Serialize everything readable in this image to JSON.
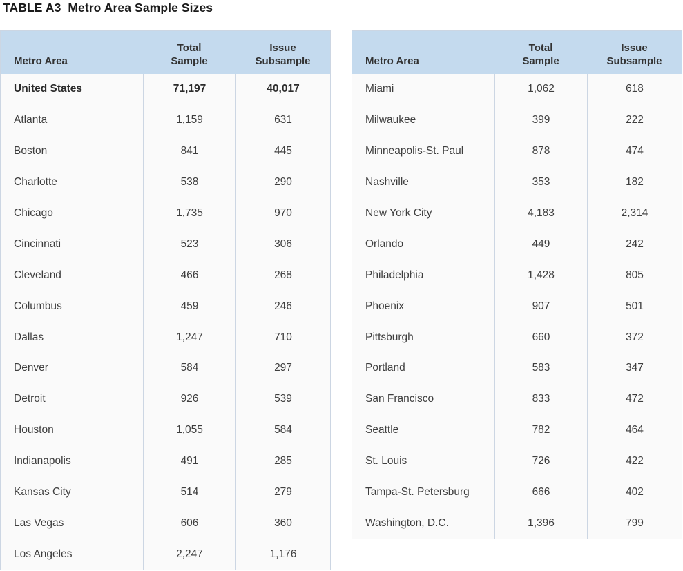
{
  "title": "TABLE A3  Metro Area Sample Sizes",
  "columns": [
    "Metro Area",
    "Total\nSample",
    "Issue\nSubsample"
  ],
  "colors": {
    "header_bg": "#c4daee",
    "body_bg": "#fafafa",
    "grid_line": "#ccd6e3",
    "title_color": "#1a1a1a",
    "header_text": "#333333",
    "body_text": "#3e3e3e",
    "bold_text": "#2b2b2b"
  },
  "tables": {
    "left": {
      "rows": [
        {
          "metro": "United States",
          "total": "71,197",
          "issue": "40,017",
          "bold": true
        },
        {
          "metro": "Atlanta",
          "total": "1,159",
          "issue": "631"
        },
        {
          "metro": "Boston",
          "total": "841",
          "issue": "445"
        },
        {
          "metro": "Charlotte",
          "total": "538",
          "issue": "290"
        },
        {
          "metro": "Chicago",
          "total": "1,735",
          "issue": "970"
        },
        {
          "metro": "Cincinnati",
          "total": "523",
          "issue": "306"
        },
        {
          "metro": "Cleveland",
          "total": "466",
          "issue": "268"
        },
        {
          "metro": "Columbus",
          "total": "459",
          "issue": "246"
        },
        {
          "metro": "Dallas",
          "total": "1,247",
          "issue": "710"
        },
        {
          "metro": "Denver",
          "total": "584",
          "issue": "297"
        },
        {
          "metro": "Detroit",
          "total": "926",
          "issue": "539"
        },
        {
          "metro": "Houston",
          "total": "1,055",
          "issue": "584"
        },
        {
          "metro": "Indianapolis",
          "total": "491",
          "issue": "285"
        },
        {
          "metro": "Kansas City",
          "total": "514",
          "issue": "279"
        },
        {
          "metro": "Las Vegas",
          "total": "606",
          "issue": "360"
        },
        {
          "metro": "Los Angeles",
          "total": "2,247",
          "issue": "1,176"
        }
      ]
    },
    "right": {
      "rows": [
        {
          "metro": "Miami",
          "total": "1,062",
          "issue": "618"
        },
        {
          "metro": "Milwaukee",
          "total": "399",
          "issue": "222"
        },
        {
          "metro": "Minneapolis-St. Paul",
          "total": "878",
          "issue": "474"
        },
        {
          "metro": "Nashville",
          "total": "353",
          "issue": "182"
        },
        {
          "metro": "New York City",
          "total": "4,183",
          "issue": "2,314"
        },
        {
          "metro": "Orlando",
          "total": "449",
          "issue": "242"
        },
        {
          "metro": "Philadelphia",
          "total": "1,428",
          "issue": "805"
        },
        {
          "metro": "Phoenix",
          "total": "907",
          "issue": "501"
        },
        {
          "metro": "Pittsburgh",
          "total": "660",
          "issue": "372"
        },
        {
          "metro": "Portland",
          "total": "583",
          "issue": "347"
        },
        {
          "metro": "San Francisco",
          "total": "833",
          "issue": "472"
        },
        {
          "metro": "Seattle",
          "total": "782",
          "issue": "464"
        },
        {
          "metro": "St. Louis",
          "total": "726",
          "issue": "422"
        },
        {
          "metro": "Tampa-St. Petersburg",
          "total": "666",
          "issue": "402"
        },
        {
          "metro": "Washington, D.C.",
          "total": "1,396",
          "issue": "799"
        }
      ]
    }
  }
}
